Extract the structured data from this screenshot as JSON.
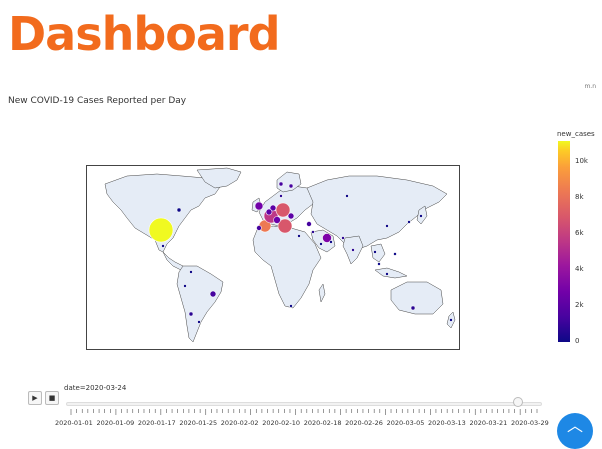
{
  "header": {
    "title": "Dashboard",
    "corner_text": "m.n"
  },
  "plot": {
    "title": "New COVID-19 Cases Reported per Day",
    "colorbar": {
      "title": "new_cases",
      "ticks": [
        "10k",
        "8k",
        "6k",
        "4k",
        "2k",
        "0"
      ]
    },
    "markers": [
      {
        "region": "USA",
        "value": 11000,
        "color": "#f0f921"
      },
      {
        "region": "Canada",
        "value": 100,
        "color": "#0d0887"
      },
      {
        "region": "Mexico",
        "value": 50,
        "color": "#0d0887"
      },
      {
        "region": "Brazil",
        "value": 300,
        "color": "#46039f"
      },
      {
        "region": "Chile",
        "value": 150,
        "color": "#2a0593"
      },
      {
        "region": "Argentina",
        "value": 50,
        "color": "#0d0887"
      },
      {
        "region": "Peru",
        "value": 50,
        "color": "#0d0887"
      },
      {
        "region": "Colombia",
        "value": 50,
        "color": "#0d0887"
      },
      {
        "region": "Spain",
        "value": 6400,
        "color": "#ed7953"
      },
      {
        "region": "Portugal",
        "value": 300,
        "color": "#46039f"
      },
      {
        "region": "France",
        "value": 3800,
        "color": "#bd3786"
      },
      {
        "region": "Germany",
        "value": 4800,
        "color": "#d8576b"
      },
      {
        "region": "Italy",
        "value": 5200,
        "color": "#d8576b"
      },
      {
        "region": "UK",
        "value": 1400,
        "color": "#7201a8"
      },
      {
        "region": "Switzerland",
        "value": 900,
        "color": "#6a00a8"
      },
      {
        "region": "Netherlands",
        "value": 600,
        "color": "#5c01a6"
      },
      {
        "region": "Belgium",
        "value": 500,
        "color": "#5c01a6"
      },
      {
        "region": "Austria",
        "value": 500,
        "color": "#5c01a6"
      },
      {
        "region": "Norway",
        "value": 200,
        "color": "#46039f"
      },
      {
        "region": "Sweden",
        "value": 200,
        "color": "#46039f"
      },
      {
        "region": "Denmark",
        "value": 100,
        "color": "#2a0593"
      },
      {
        "region": "Turkey",
        "value": 300,
        "color": "#46039f"
      },
      {
        "region": "Israel",
        "value": 100,
        "color": "#2a0593"
      },
      {
        "region": "Iran",
        "value": 1700,
        "color": "#7e03a8"
      },
      {
        "region": "Pakistan",
        "value": 100,
        "color": "#2a0593"
      },
      {
        "region": "India",
        "value": 100,
        "color": "#2a0593"
      },
      {
        "region": "China",
        "value": 50,
        "color": "#0d0887"
      },
      {
        "region": "Korea",
        "value": 100,
        "color": "#0d0887"
      },
      {
        "region": "Japan",
        "value": 50,
        "color": "#0d0887"
      },
      {
        "region": "Philippines",
        "value": 50,
        "color": "#0d0887"
      },
      {
        "region": "Malaysia",
        "value": 100,
        "color": "#0d0887"
      },
      {
        "region": "Thailand",
        "value": 100,
        "color": "#0d0887"
      },
      {
        "region": "Indonesia",
        "value": 50,
        "color": "#0d0887"
      },
      {
        "region": "Australia",
        "value": 300,
        "color": "#2a0593"
      },
      {
        "region": "New Zealand",
        "value": 50,
        "color": "#0d0887"
      },
      {
        "region": "South Africa",
        "value": 50,
        "color": "#0d0887"
      },
      {
        "region": "Egypt",
        "value": 50,
        "color": "#0d0887"
      },
      {
        "region": "Saudi Arabia",
        "value": 100,
        "color": "#0d0887"
      },
      {
        "region": "Qatar",
        "value": 50,
        "color": "#0d0887"
      },
      {
        "region": "Russia",
        "value": 50,
        "color": "#0d0887"
      }
    ]
  },
  "slider": {
    "current_label": "date=2020-03-24",
    "play_icon": "play-icon",
    "stop_icon": "stop-icon",
    "progress": 0.95,
    "dates": [
      "2020-01-01",
      "2020-01-09",
      "2020-01-17",
      "2020-01-25",
      "2020-02-02",
      "2020-02-10",
      "2020-02-18",
      "2020-02-26",
      "2020-03-05",
      "2020-03-13",
      "2020-03-21",
      "2020-03-29"
    ]
  },
  "fab": {
    "icon": "chevron-up-icon",
    "symbol": "︿",
    "color": "#1e88e5"
  }
}
